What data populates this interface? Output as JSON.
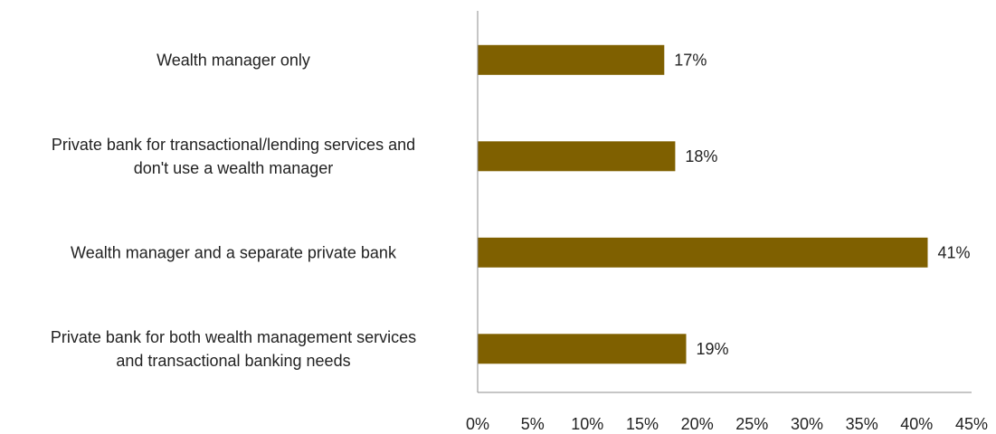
{
  "chart_data": {
    "type": "bar",
    "orientation": "horizontal",
    "categories": [
      [
        "Wealth manager only"
      ],
      [
        "Private bank for transactional/lending services and",
        "don't use a wealth manager"
      ],
      [
        "Wealth manager and a separate private bank"
      ],
      [
        "Private bank for both wealth management services",
        "and transactional banking needs"
      ]
    ],
    "values": [
      17,
      18,
      41,
      19
    ],
    "data_labels": [
      "17%",
      "18%",
      "41%",
      "19%"
    ],
    "xlim": [
      0,
      45
    ],
    "x_ticks": [
      0,
      5,
      10,
      15,
      20,
      25,
      30,
      35,
      40,
      45
    ],
    "x_tick_labels": [
      "0%",
      "5%",
      "10%",
      "15%",
      "20%",
      "25%",
      "30%",
      "35%",
      "40%",
      "45%"
    ],
    "title": "",
    "xlabel": "",
    "ylabel": "",
    "grid": false,
    "legend": "none",
    "bar_color": "#7f6000",
    "axis_color": "#8c8c8c"
  }
}
